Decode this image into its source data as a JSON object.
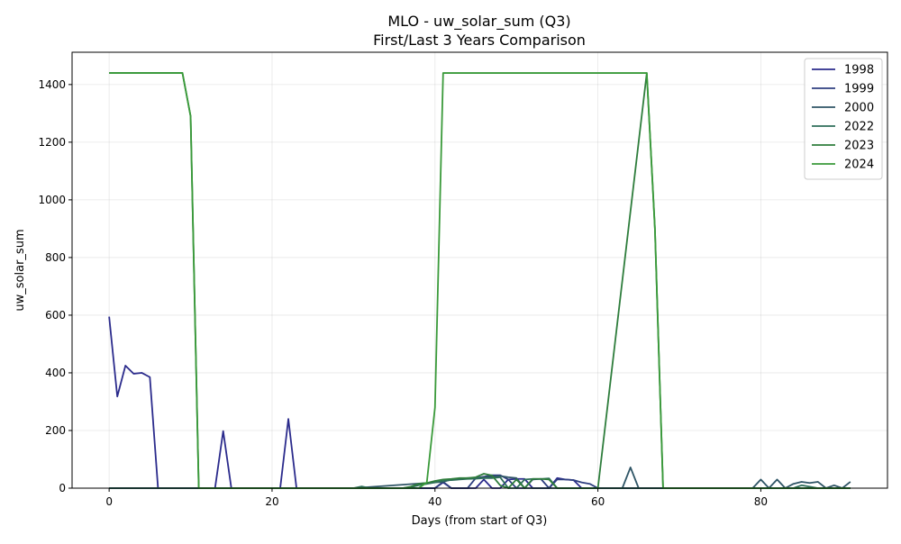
{
  "chart_data": {
    "type": "line",
    "title": "MLO - uw_solar_sum (Q3)",
    "subtitle": "First/Last 3 Years Comparison",
    "xlabel": "Days (from start of Q3)",
    "ylabel": "uw_solar_sum",
    "xlim": [
      -4.55,
      95.55
    ],
    "ylim": [
      0,
      1512
    ],
    "xticks": [
      0,
      20,
      40,
      60,
      80
    ],
    "yticks": [
      0,
      200,
      400,
      600,
      800,
      1000,
      1200,
      1400
    ],
    "grid": true,
    "legend_position": "top-right",
    "series": [
      {
        "name": "1998",
        "color": "#2b2b8c",
        "x": [
          0,
          1,
          2,
          3,
          4,
          5,
          6,
          7,
          8,
          9,
          10,
          11,
          12,
          13,
          14,
          15,
          16,
          17,
          18,
          19,
          20,
          21,
          22,
          23,
          24,
          25,
          26,
          27,
          28,
          29,
          30,
          31,
          32,
          33,
          34,
          35,
          36,
          37,
          38,
          39,
          40,
          41,
          42,
          43,
          44,
          45,
          46,
          47,
          48,
          49,
          50,
          51,
          52,
          53,
          54,
          55,
          56,
          57,
          58,
          59,
          60,
          61,
          62,
          63,
          64,
          65,
          66,
          67,
          68,
          69,
          70,
          71,
          72,
          73,
          74,
          75,
          76,
          77,
          78,
          79,
          80,
          81,
          82,
          83,
          84,
          85,
          86,
          87,
          88,
          89,
          90,
          91
        ],
        "y": [
          595,
          318,
          425,
          397,
          400,
          385,
          0,
          0,
          0,
          0,
          0,
          0,
          0,
          0,
          198,
          0,
          0,
          0,
          0,
          0,
          0,
          0,
          240,
          0,
          0,
          0,
          0,
          0,
          0,
          0,
          0,
          0,
          0,
          0,
          0,
          0,
          0,
          0,
          0,
          0,
          0,
          20,
          0,
          0,
          0,
          0,
          30,
          0,
          0,
          30,
          32,
          32,
          0,
          0,
          0,
          35,
          30,
          28,
          0,
          0,
          0,
          0,
          0,
          0,
          0,
          0,
          0,
          0,
          0,
          0,
          0,
          0,
          0,
          0,
          0,
          0,
          0,
          0,
          0,
          0,
          0,
          0,
          0,
          0,
          0,
          0,
          0,
          0,
          0,
          0,
          0,
          0
        ]
      },
      {
        "name": "1999",
        "color": "#2f3f80",
        "x": [
          0,
          10,
          20,
          30,
          38,
          39,
          40,
          41,
          42,
          43,
          44,
          45,
          46,
          47,
          48,
          49,
          50,
          51,
          52,
          53,
          54,
          55,
          56,
          57,
          58,
          59,
          60,
          61,
          62,
          63,
          64,
          65,
          66,
          70,
          80,
          91
        ],
        "y": [
          0,
          0,
          0,
          0,
          0,
          0,
          0,
          22,
          0,
          0,
          0,
          35,
          40,
          45,
          45,
          30,
          0,
          0,
          30,
          32,
          0,
          30,
          30,
          28,
          20,
          15,
          0,
          0,
          0,
          0,
          0,
          0,
          0,
          0,
          0,
          0
        ]
      },
      {
        "name": "2000",
        "color": "#2f5566",
        "x": [
          0,
          10,
          20,
          30,
          40,
          41,
          42,
          43,
          44,
          45,
          46,
          47,
          48,
          49,
          50,
          51,
          52,
          53,
          54,
          55,
          56,
          57,
          58,
          59,
          60,
          61,
          62,
          63,
          64,
          65,
          66,
          70,
          79,
          80,
          81,
          82,
          83,
          84,
          85,
          86,
          87,
          88,
          89,
          90,
          91
        ],
        "y": [
          0,
          0,
          0,
          0,
          20,
          22,
          30,
          33,
          35,
          35,
          38,
          40,
          42,
          38,
          35,
          0,
          0,
          0,
          0,
          0,
          0,
          0,
          0,
          0,
          0,
          0,
          0,
          0,
          72,
          0,
          0,
          0,
          0,
          30,
          0,
          30,
          0,
          15,
          22,
          18,
          22,
          0,
          10,
          0,
          22
        ]
      },
      {
        "name": "2022",
        "color": "#2e6e5a",
        "x": [
          0,
          10,
          20,
          30,
          31,
          32,
          36,
          37,
          38,
          39,
          40,
          41,
          42,
          43,
          44,
          45,
          46,
          47,
          48,
          49,
          50,
          51,
          52,
          53,
          54,
          55,
          56,
          57,
          60,
          70,
          80,
          84,
          85,
          86,
          87,
          88,
          91
        ],
        "y": [
          0,
          0,
          0,
          0,
          6,
          0,
          0,
          3,
          10,
          15,
          20,
          25,
          28,
          30,
          32,
          33,
          35,
          35,
          38,
          0,
          0,
          30,
          32,
          32,
          34,
          0,
          0,
          0,
          0,
          0,
          0,
          0,
          10,
          5,
          0,
          0,
          0
        ]
      },
      {
        "name": "2023",
        "color": "#2e7d3c",
        "x": [
          0,
          9,
          10,
          11,
          12,
          13,
          20,
          30,
          36,
          37,
          38,
          39,
          40,
          41,
          42,
          43,
          44,
          45,
          46,
          47,
          48,
          49,
          50,
          51,
          52,
          53,
          54,
          55,
          56,
          60,
          66,
          67,
          68,
          70,
          80,
          91
        ],
        "y": [
          1440,
          1440,
          1290,
          0,
          0,
          0,
          0,
          0,
          0,
          5,
          15,
          18,
          25,
          30,
          32,
          35,
          35,
          38,
          50,
          44,
          10,
          0,
          30,
          0,
          32,
          32,
          30,
          0,
          0,
          0,
          1440,
          900,
          0,
          0,
          0,
          0
        ]
      },
      {
        "name": "2024",
        "color": "#3a9a3a",
        "x": [
          0,
          9,
          10,
          11,
          12,
          13,
          20,
          30,
          38,
          39,
          40,
          41,
          46,
          47,
          48,
          55,
          60,
          66,
          67,
          68,
          70,
          80,
          91
        ],
        "y": [
          1440,
          1440,
          1290,
          0,
          0,
          0,
          0,
          0,
          0,
          20,
          280,
          1440,
          1440,
          1440,
          1440,
          1440,
          1440,
          1440,
          900,
          0,
          0,
          0,
          0
        ]
      }
    ]
  }
}
